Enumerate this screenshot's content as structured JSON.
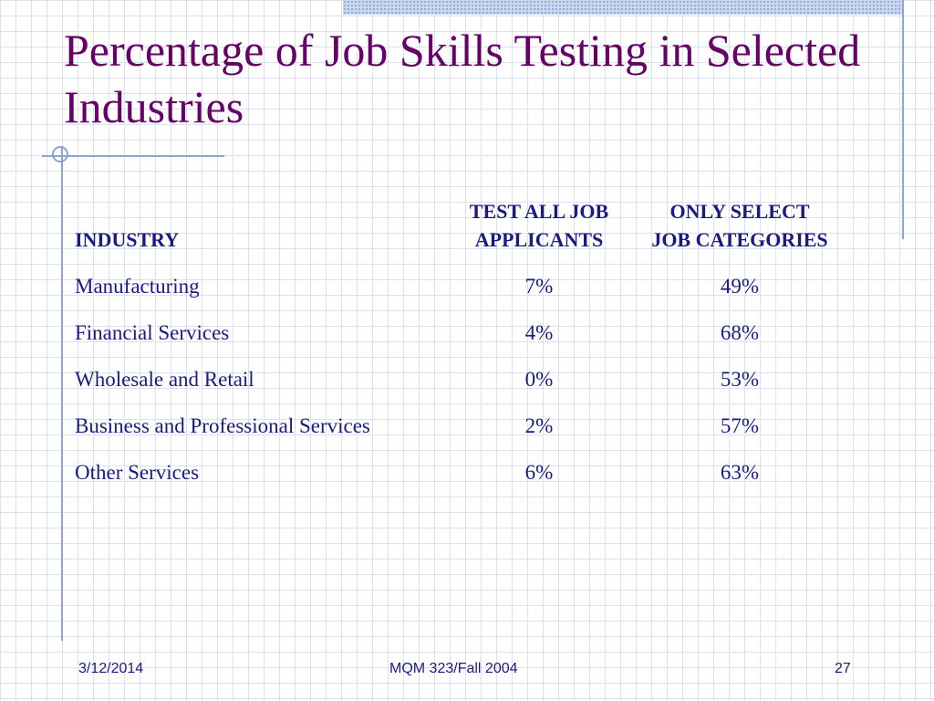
{
  "slide": {
    "title": "Percentage of Job Skills Testing in Selected Industries"
  },
  "table": {
    "headers": {
      "industry": "INDUSTRY",
      "test_all_line1": "TEST ALL JOB",
      "test_all_line2": "APPLICANTS",
      "only_select_line1": "ONLY SELECT",
      "only_select_line2": "JOB CATEGORIES"
    },
    "rows": [
      {
        "industry": "Manufacturing",
        "test_all": "7%",
        "only_select": "49%"
      },
      {
        "industry": "Financial Services",
        "test_all": "4%",
        "only_select": "68%"
      },
      {
        "industry": "Wholesale and Retail",
        "test_all": "0%",
        "only_select": "53%"
      },
      {
        "industry": "Business and Professional Services",
        "test_all": "2%",
        "only_select": "57%"
      },
      {
        "industry": "Other Services",
        "test_all": "6%",
        "only_select": "63%"
      }
    ]
  },
  "footer": {
    "date": "3/12/2014",
    "course": "MQM 323/Fall 2004",
    "page": "27"
  },
  "colors": {
    "title": "#660066",
    "text": "#1a1a80",
    "decor_line": "#8aa6d8",
    "grid": "#d9e3f0"
  }
}
